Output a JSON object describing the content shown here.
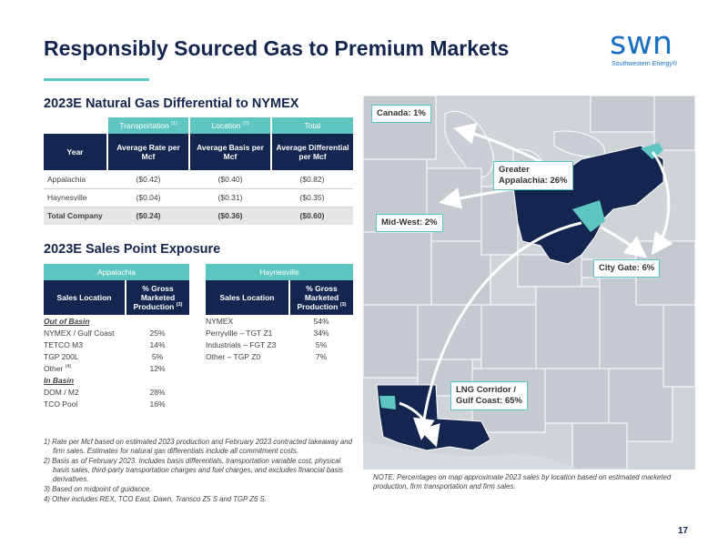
{
  "header": {
    "title": "Responsibly Sourced Gas to Premium Markets",
    "logo_word": "swn",
    "logo_sub": "Southwestern Energy®"
  },
  "differential": {
    "section_title": "2023E Natural Gas Differential to NYMEX",
    "group_headers": {
      "transportation": "Transportation",
      "transportation_sup": "(1)",
      "location": "Location",
      "location_sup": "(2)",
      "total": "Total"
    },
    "col_headers": {
      "year": "Year",
      "avg_rate": "Average Rate per Mcf",
      "avg_basis": "Average Basis per Mcf",
      "avg_diff": "Average Differential per Mcf"
    },
    "rows": [
      {
        "label": "Appalachia",
        "rate": "($0.42)",
        "basis": "($0.40)",
        "diff": "($0.82)"
      },
      {
        "label": "Haynesville",
        "rate": "($0.04)",
        "basis": "($0.31)",
        "diff": "($0.35)"
      }
    ],
    "total": {
      "label": "Total Company",
      "rate": "($0.24)",
      "basis": "($0.36)",
      "diff": "($0.60)"
    }
  },
  "exposure": {
    "section_title": "2023E Sales Point Exposure",
    "appalachia": {
      "title": "Appalachia",
      "col_location": "Sales Location",
      "col_pct": "% Gross Marketed Production",
      "col_pct_sup": "(3)",
      "out_of_basin": "Out of Basin",
      "in_basin": "In Basin",
      "out_rows": [
        {
          "label": "NYMEX / Gulf Coast",
          "value": "25%"
        },
        {
          "label": "TETCO M3",
          "value": "14%"
        },
        {
          "label": "TGP 200L",
          "value": "5%"
        },
        {
          "label": "Other",
          "sup": "(4)",
          "value": "12%"
        }
      ],
      "in_rows": [
        {
          "label": "DOM / M2",
          "value": "28%"
        },
        {
          "label": "TCO Pool",
          "value": "16%"
        }
      ]
    },
    "haynesville": {
      "title": "Haynesville",
      "col_location": "Sales Location",
      "col_pct": "% Gross Marketed Production",
      "col_pct_sup": "(3)",
      "rows": [
        {
          "label": "NYMEX",
          "value": "54%"
        },
        {
          "label": "Perryville – TGT Z1",
          "value": "34%"
        },
        {
          "label": "Industrials – FGT Z3",
          "value": "5%"
        },
        {
          "label": "Other – TGP Z0",
          "value": "7%"
        }
      ]
    }
  },
  "footnotes": [
    "1) Rate per Mcf based on estimated 2023 production and February 2023 contracted takeaway and firm sales. Estimates for natural gas differentials include all commitment costs.",
    "2) Basis as of February 2023. Includes basis differentials, transportation variable cost, physical basis sales, third-party transportation charges and fuel charges, and excludes financial basis derivatives.",
    "3)  Based on midpoint of guidance.",
    "4) Other includes REX, TCO East, Dawn, Transco Z5 S and TGP Z6 S."
  ],
  "map": {
    "callouts": {
      "canada": "Canada: 1%",
      "appalachia_line1": "Greater",
      "appalachia_line2": "Appalachia: 26%",
      "midwest": "Mid-West: 2%",
      "city_gate": "City Gate: 6%",
      "lng_line1": "LNG Corridor /",
      "lng_line2": "Gulf Coast: 65%"
    },
    "note": "NOTE: Percentages on map approximate 2023 sales by location based on estimated marketed production, firm transportation and firm sales."
  },
  "page_number": "17",
  "colors": {
    "navy": "#14264f",
    "teal": "#5ec6c0",
    "logo_blue": "#1b6fc2",
    "map_bg": "#cfd4d9",
    "state_fill": "#c2c8ce"
  }
}
